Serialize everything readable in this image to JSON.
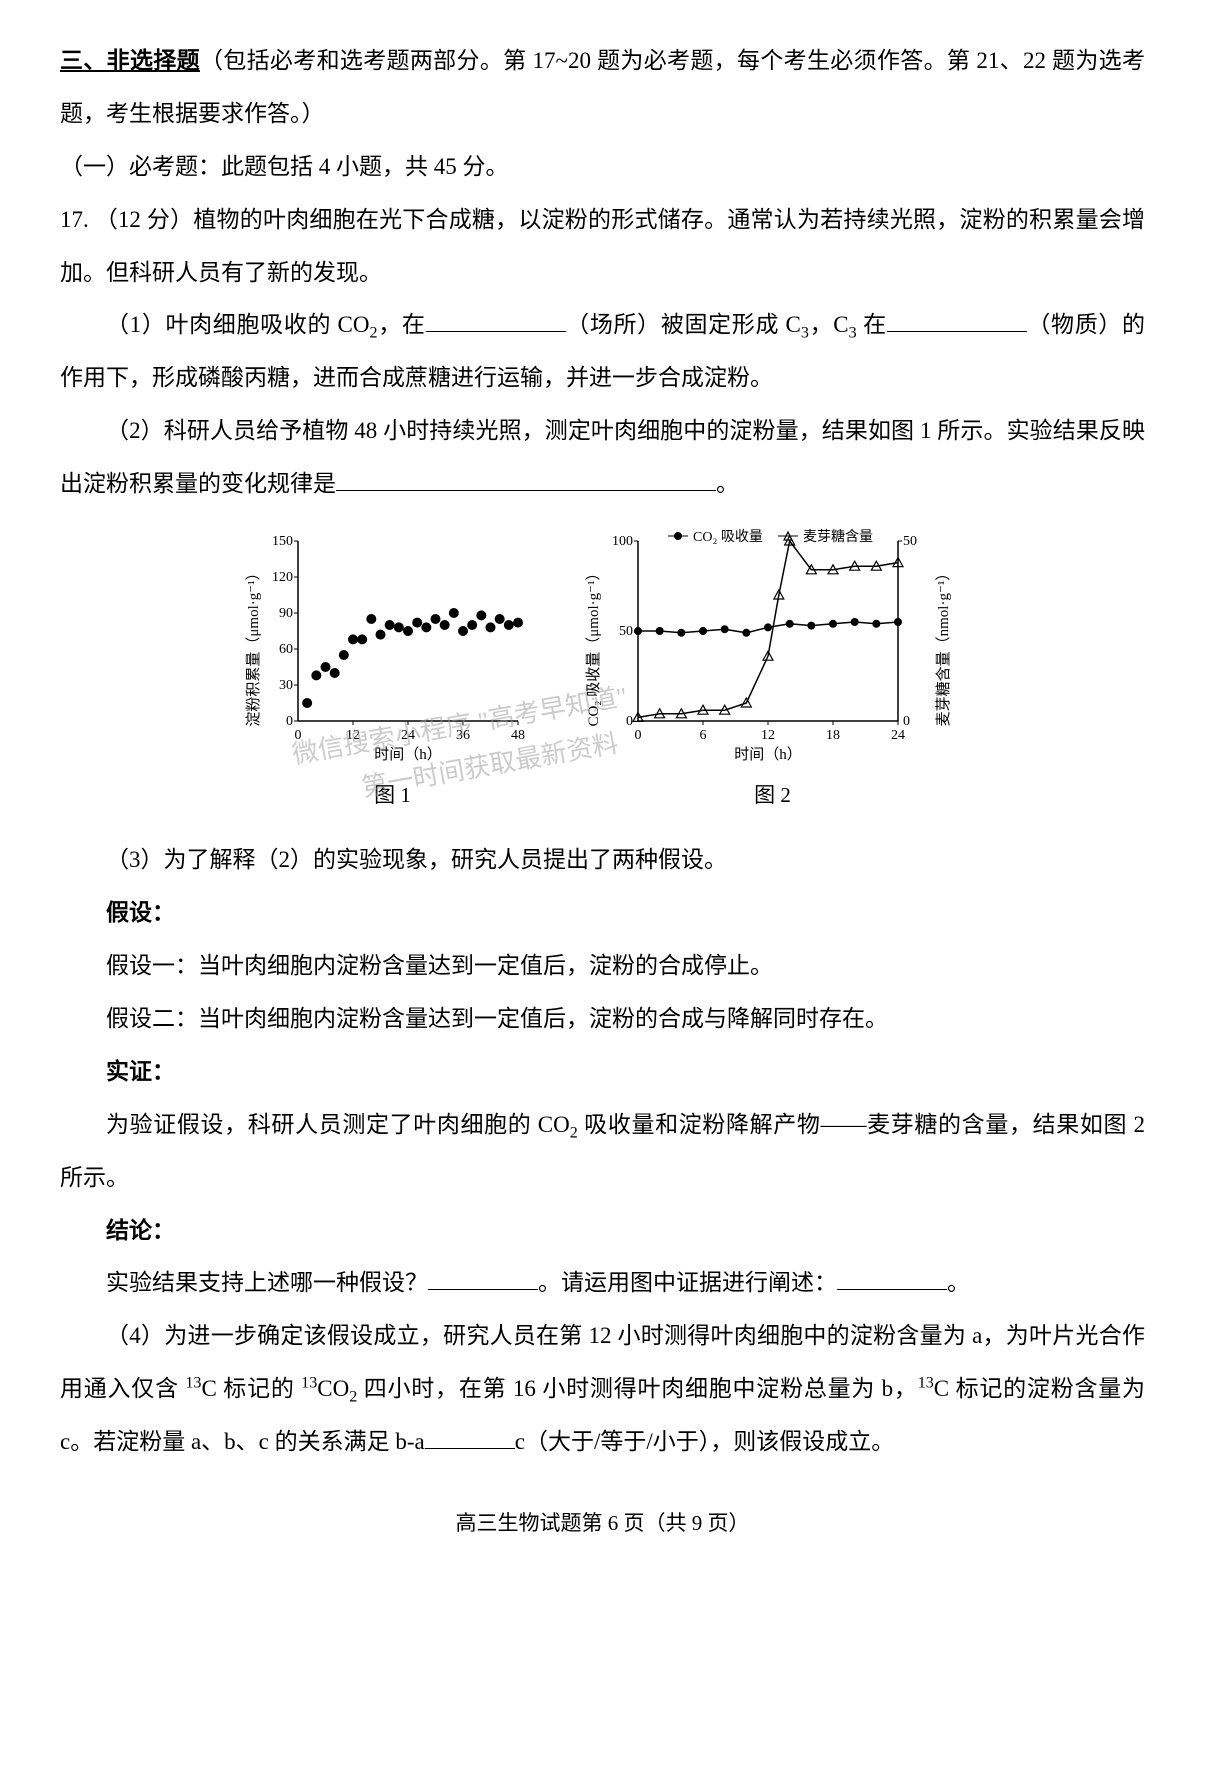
{
  "section": {
    "heading": "三、非选择题",
    "description": "（包括必考和选考题两部分。第 17~20 题为必考题，每个考生必须作答。第 21、22 题为选考题，考生根据要求作答。）"
  },
  "subsection": {
    "text": "（一）必考题：此题包括 4 小题，共 45 分。"
  },
  "q17": {
    "prefix": "17. （12 分）植物的叶肉细胞在光下合成糖，以淀粉的形式储存。通常认为若持续光照，淀粉的积累量会增加。但科研人员有了新的发现。",
    "part1_a": "（1）叶肉细胞吸收的 CO",
    "part1_b": "，在",
    "part1_c": "（场所）被固定形成 C",
    "part1_d": "，C",
    "part1_e": " 在",
    "part1_f": "（物质）的作用下，形成磷酸丙糖，进而合成蔗糖进行运输，并进一步合成淀粉。",
    "part2_a": "（2）科研人员给予植物 48 小时持续光照，测定叶肉细胞中的淀粉量，结果如图 1 所示。实验结果反映出淀粉积累量的变化规律是",
    "part2_b": "。",
    "part3": "（3）为了解释（2）的实验现象，研究人员提出了两种假设。",
    "hyp_label": "假设：",
    "hyp1": "假设一：当叶肉细胞内淀粉含量达到一定值后，淀粉的合成停止。",
    "hyp2": "假设二：当叶肉细胞内淀粉含量达到一定值后，淀粉的合成与降解同时存在。",
    "verify_label": "实证：",
    "verify_text_a": "为验证假设，科研人员测定了叶肉细胞的 CO",
    "verify_text_b": " 吸收量和淀粉降解产物——麦芽糖的含量，结果如图 2 所示。",
    "conclusion_label": "结论：",
    "conclusion_a": "实验结果支持上述哪一种假设？",
    "conclusion_b": "。请运用图中证据进行阐述：",
    "conclusion_c": "。",
    "part4_a": "（4）为进一步确定该假设成立，研究人员在第 12 小时测得叶肉细胞中的淀粉含量为 a，为叶片光合作用通入仅含 ",
    "part4_b": "C 标记的 ",
    "part4_c": "CO",
    "part4_d": " 四小时，在第 16 小时测得叶肉细胞中淀粉总量为 b，",
    "part4_e": "C 标记的淀粉含量为 c。若淀粉量 a、b、c 的关系满足 b-a",
    "part4_f": "c（大于/等于/小于），则该假设成立。"
  },
  "chart1": {
    "type": "scatter",
    "title": "图 1",
    "xlabel": "时间（h）",
    "ylabel": "淀粉积累量（μmol·g⁻¹）",
    "xlim": [
      0,
      48
    ],
    "ylim": [
      0,
      150
    ],
    "xticks": [
      0,
      12,
      24,
      36,
      48
    ],
    "yticks": [
      0,
      30,
      60,
      90,
      120,
      150
    ],
    "label_fontsize": 15,
    "marker_color": "#000000",
    "marker_size": 5,
    "background_color": "#ffffff",
    "data_x": [
      2,
      4,
      6,
      8,
      10,
      12,
      14,
      16,
      18,
      20,
      22,
      24,
      26,
      28,
      30,
      32,
      34,
      36,
      38,
      40,
      42,
      44,
      46,
      48
    ],
    "data_y": [
      15,
      38,
      45,
      40,
      55,
      68,
      68,
      85,
      72,
      80,
      78,
      75,
      82,
      78,
      85,
      80,
      90,
      75,
      80,
      88,
      78,
      85,
      80,
      82
    ]
  },
  "chart2": {
    "type": "line-dual-axis",
    "title": "图 2",
    "xlabel": "时间（h）",
    "ylabel_left": "CO₂ 吸收量（μmol·g⁻¹）",
    "ylabel_right": "麦芽糖含量（nmol·g⁻¹）",
    "legend": [
      "CO₂ 吸收量",
      "麦芽糖含量"
    ],
    "xlim": [
      0,
      24
    ],
    "ylim_left": [
      0,
      100
    ],
    "ylim_right": [
      0,
      50
    ],
    "xticks": [
      0,
      6,
      12,
      18,
      24
    ],
    "yticks_left": [
      0,
      50,
      100
    ],
    "yticks_right": [
      0,
      50
    ],
    "label_fontsize": 15,
    "co2_marker": "circle",
    "co2_color": "#000000",
    "maltose_marker": "triangle",
    "maltose_color": "#000000",
    "background_color": "#ffffff",
    "co2_x": [
      0,
      2,
      4,
      6,
      8,
      10,
      12,
      14,
      16,
      18,
      20,
      22,
      24
    ],
    "co2_y": [
      50,
      50,
      49,
      50,
      51,
      49,
      52,
      54,
      53,
      54,
      55,
      54,
      55
    ],
    "maltose_x": [
      0,
      2,
      4,
      6,
      8,
      10,
      12,
      13,
      14,
      16,
      18,
      20,
      22,
      24
    ],
    "maltose_y": [
      1,
      2,
      2,
      3,
      3,
      5,
      18,
      35,
      50,
      42,
      42,
      43,
      43,
      44
    ]
  },
  "watermarks": {
    "line1": "微信搜索小程序 \"高考早知道\"",
    "line2": "第一时间获取最新资料"
  },
  "footer": {
    "text": "高三生物试题第 6 页（共 9 页）"
  }
}
